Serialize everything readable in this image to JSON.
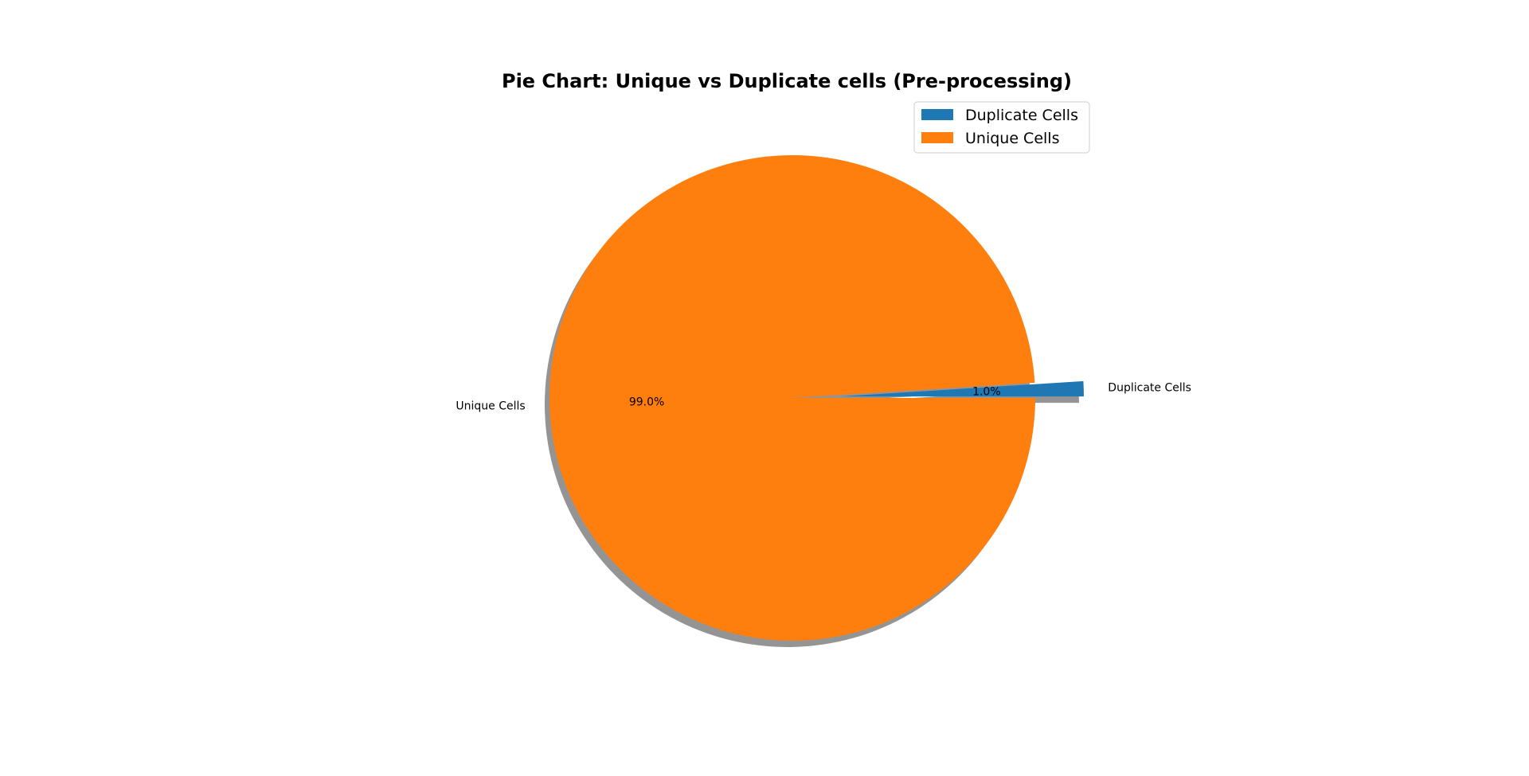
{
  "chart_data": {
    "type": "pie",
    "title": "Pie Chart: Unique vs Duplicate cells (Pre-processing)",
    "categories": [
      "Duplicate Cells",
      "Unique Cells"
    ],
    "values": [
      1.0,
      99.0
    ],
    "percent_labels": [
      "1.0%",
      "99.0%"
    ],
    "colors": [
      "#1f77b4",
      "#ff7f0e"
    ],
    "explode": [
      0.2,
      0.0
    ],
    "start_angle_deg": 0,
    "shadow": true,
    "legend": {
      "placement": "top-right",
      "entries": [
        "Duplicate Cells",
        "Unique Cells"
      ]
    }
  }
}
